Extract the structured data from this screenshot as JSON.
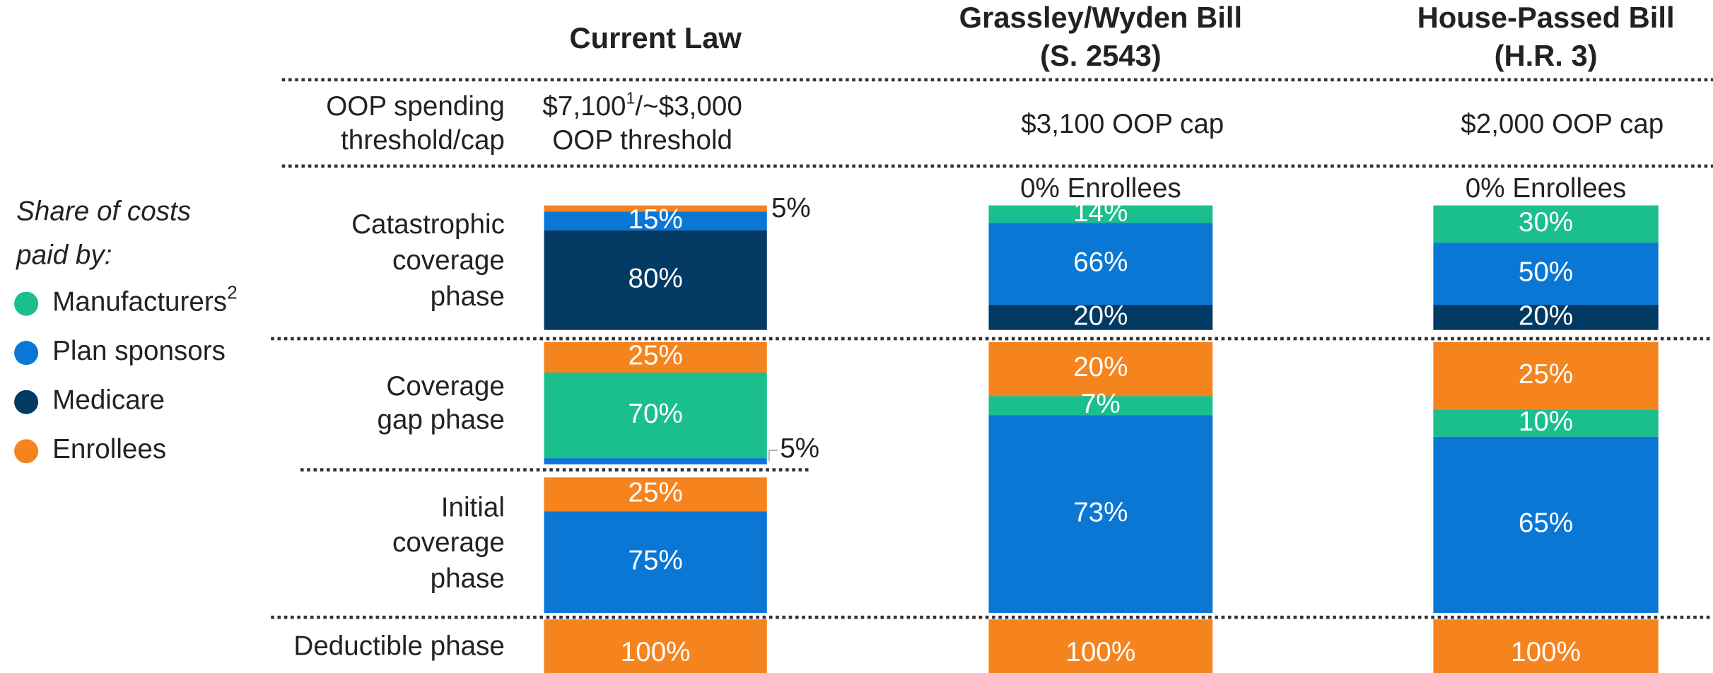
{
  "chart_data": {
    "type": "stacked-phases",
    "legend_title": [
      "Share of costs",
      "paid by:"
    ],
    "series": [
      {
        "name": "Manufacturers",
        "name_sup": "2",
        "color": "#1abf8d"
      },
      {
        "name": "Plan sponsors",
        "color": "#0a77d5"
      },
      {
        "name": "Medicare",
        "color": "#033a63"
      },
      {
        "name": "Enrollees",
        "color": "#f5841f"
      }
    ],
    "threshold_label": [
      "OOP spending",
      "threshold/cap"
    ],
    "phases": [
      [
        "Catastrophic",
        "coverage",
        "phase"
      ],
      [
        "Coverage",
        "gap phase"
      ],
      [
        "Initial",
        "coverage",
        "phase"
      ],
      [
        "Deductible phase"
      ]
    ],
    "columns": [
      {
        "title": [
          "Current Law"
        ],
        "threshold": [
          [
            "$7,100",
            "1",
            "/~$3,000"
          ],
          [
            "OOP threshold"
          ]
        ],
        "blocks": [
          {
            "values": [
              null,
              15,
              80,
              5
            ],
            "value_labels": [
              null,
              "15%",
              "80%",
              "5%"
            ]
          },
          {
            "values": [
              70,
              5,
              null,
              25
            ],
            "value_labels": [
              "70%",
              "5%",
              null,
              "25%"
            ]
          },
          {
            "values": [
              null,
              75,
              null,
              25
            ],
            "value_labels": [
              null,
              "75%",
              null,
              "25%"
            ]
          },
          {
            "values": [
              null,
              null,
              null,
              100
            ],
            "value_labels": [
              null,
              null,
              null,
              "100%"
            ]
          }
        ]
      },
      {
        "title": [
          "Grassley/Wyden Bill",
          "(S. 2543)"
        ],
        "threshold": [
          [
            "$3,100 OOP cap"
          ]
        ],
        "blocks": [
          {
            "values": [
              14,
              66,
              20,
              0
            ],
            "value_labels": [
              "14%",
              "66%",
              "20%",
              "0% Enrollees"
            ]
          },
          {
            "values": [
              7,
              73,
              null,
              20
            ],
            "value_labels": [
              "7%",
              "73%",
              null,
              "20%"
            ]
          },
          {
            "values": [
              null,
              null,
              null,
              100
            ],
            "value_labels": [
              null,
              null,
              null,
              "100%"
            ]
          }
        ]
      },
      {
        "title": [
          "House-Passed Bill",
          "(H.R. 3)"
        ],
        "threshold": [
          [
            "$2,000 OOP cap"
          ]
        ],
        "blocks": [
          {
            "values": [
              30,
              50,
              20,
              0
            ],
            "value_labels": [
              "30%",
              "50%",
              "20%",
              "0% Enrollees"
            ]
          },
          {
            "values": [
              10,
              65,
              null,
              25
            ],
            "value_labels": [
              "10%",
              "65%",
              null,
              "25%"
            ]
          },
          {
            "values": [
              null,
              null,
              null,
              100
            ],
            "value_labels": [
              null,
              null,
              null,
              "100%"
            ]
          }
        ]
      }
    ]
  }
}
